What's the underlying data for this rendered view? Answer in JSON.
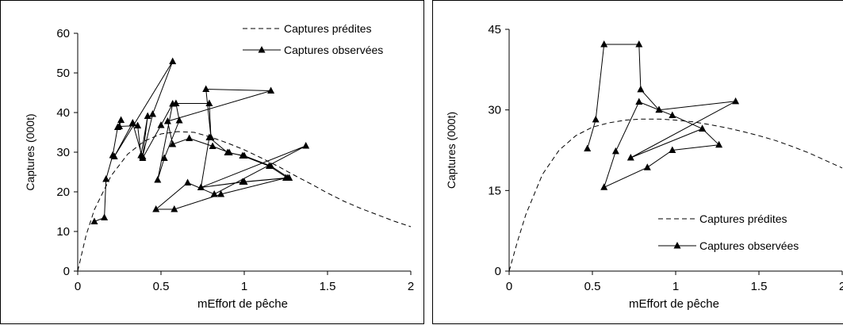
{
  "chart_data": [
    {
      "type": "line",
      "xlabel": "mEffort de pêche",
      "ylabel": "Captures (000t)",
      "xlim": [
        0,
        2
      ],
      "ylim": [
        0,
        60
      ],
      "x_ticks": [
        0,
        0.5,
        1,
        1.5,
        2
      ],
      "y_ticks": [
        0,
        10,
        20,
        30,
        40,
        50,
        60
      ],
      "x_tick_labels": [
        "0",
        "0.5",
        "1",
        "1.5",
        "2"
      ],
      "y_tick_labels": [
        "0",
        "10",
        "20",
        "30",
        "40",
        "50",
        "60"
      ],
      "legend_position": "top-right",
      "grid": false,
      "series": [
        {
          "name": "Captures prédites",
          "style": "dashed",
          "x": [
            0,
            0.05,
            0.1,
            0.2,
            0.3,
            0.4,
            0.5,
            0.6,
            0.7,
            0.8,
            0.9,
            1.0,
            1.1,
            1.2,
            1.3,
            1.4,
            1.5,
            1.6,
            1.7,
            1.8,
            1.9,
            2.0
          ],
          "y": [
            0,
            9,
            15.5,
            24,
            29.5,
            32.8,
            34.6,
            35.2,
            35,
            33.8,
            32.3,
            30.6,
            28.6,
            26.5,
            24.2,
            22,
            19.7,
            17.6,
            15.8,
            14.2,
            12.6,
            11.2
          ]
        },
        {
          "name": "Captures observées",
          "style": "solid-triangle",
          "x": [
            0.1,
            0.16,
            0.17,
            0.21,
            0.24,
            0.26,
            0.25,
            0.36,
            0.38,
            0.42,
            0.39,
            0.45,
            0.57,
            0.22,
            0.33,
            0.39,
            0.5,
            0.57,
            0.48,
            0.52,
            0.61,
            0.59,
            0.79,
            0.8,
            0.77,
            1.16,
            0.54,
            0.57,
            0.67,
            0.81,
            0.91,
            0.99,
            1.15,
            1.26,
            1.0,
            0.74,
            1.37,
            0.82,
            0.66,
            0.47,
            0.58,
            0.86,
            1.25,
            0.99,
            0.74,
            0.79,
            0.9,
            1.0,
            1.16,
            1.27
          ],
          "y": [
            12.5,
            13.5,
            23.2,
            29.2,
            36.3,
            38.1,
            36.5,
            36.7,
            29.2,
            39.1,
            28.9,
            39.6,
            52.9,
            28.9,
            37.4,
            28.5,
            36.8,
            42.2,
            23.0,
            28.5,
            38.0,
            42.3,
            42.3,
            33.7,
            45.9,
            45.5,
            37.8,
            32.0,
            33.5,
            31.5,
            29.9,
            29.1,
            26.5,
            23.5,
            22.5,
            21.1,
            31.6,
            19.4,
            22.3,
            15.6,
            15.6,
            19.4,
            23.5,
            22.5,
            21.1,
            33.7,
            29.9,
            29.1,
            26.5,
            23.5
          ]
        }
      ]
    },
    {
      "type": "line",
      "xlabel": "mEffort de pêche",
      "ylabel": "Captures (000t)",
      "xlim": [
        0,
        2
      ],
      "ylim": [
        0,
        45
      ],
      "x_ticks": [
        0,
        0.5,
        1,
        1.5,
        2
      ],
      "y_ticks": [
        0,
        15,
        30,
        45
      ],
      "x_tick_labels": [
        "0",
        "0.5",
        "1",
        "1.5",
        "2"
      ],
      "y_tick_labels": [
        "0",
        "15",
        "30",
        "45"
      ],
      "legend_position": "bottom-right",
      "grid": false,
      "series": [
        {
          "name": "Captures prédites",
          "style": "dashed",
          "x": [
            0,
            0.05,
            0.1,
            0.2,
            0.3,
            0.4,
            0.5,
            0.6,
            0.7,
            0.8,
            0.9,
            1.0,
            1.1,
            1.2,
            1.3,
            1.4,
            1.5,
            1.6,
            1.7,
            1.8,
            1.9,
            2.0
          ],
          "y": [
            0,
            5.5,
            10.5,
            18,
            22.5,
            25.2,
            26.8,
            27.6,
            28.1,
            28.3,
            28.3,
            28.1,
            27.8,
            27.3,
            26.7,
            26.0,
            25.2,
            24.3,
            23.2,
            22.0,
            20.6,
            19.2
          ]
        },
        {
          "name": "Captures observées",
          "style": "solid-triangle",
          "x": [
            0.47,
            0.52,
            0.57,
            0.78,
            0.79,
            0.9,
            0.98,
            1.16,
            1.26,
            0.98,
            0.83,
            0.57,
            0.64,
            0.78,
            0.9,
            1.36,
            0.73,
            1.16
          ],
          "y": [
            22.8,
            28.2,
            42.2,
            42.2,
            33.8,
            30.0,
            29.0,
            26.5,
            23.5,
            22.5,
            19.3,
            15.6,
            22.3,
            31.5,
            30.0,
            31.6,
            21.1,
            26.5
          ]
        }
      ]
    }
  ]
}
